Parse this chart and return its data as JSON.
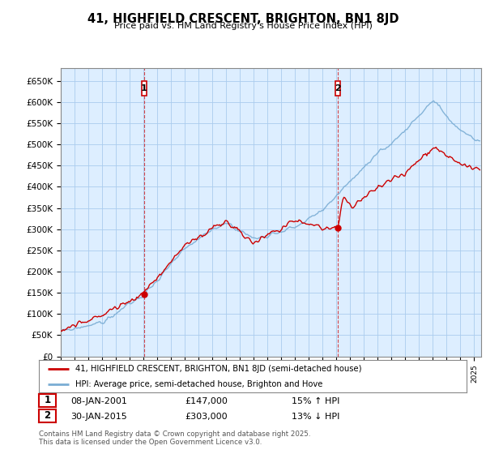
{
  "title": "41, HIGHFIELD CRESCENT, BRIGHTON, BN1 8JD",
  "subtitle": "Price paid vs. HM Land Registry's House Price Index (HPI)",
  "ylabel_ticks": [
    "£0",
    "£50K",
    "£100K",
    "£150K",
    "£200K",
    "£250K",
    "£300K",
    "£350K",
    "£400K",
    "£450K",
    "£500K",
    "£550K",
    "£600K",
    "£650K"
  ],
  "ytick_values": [
    0,
    50000,
    100000,
    150000,
    200000,
    250000,
    300000,
    350000,
    400000,
    450000,
    500000,
    550000,
    600000,
    650000
  ],
  "ylim": [
    0,
    680000
  ],
  "xlim_start": 1995.0,
  "xlim_end": 2025.5,
  "purchase1_x": 2001.03,
  "purchase1_y": 147000,
  "purchase1_label": "1",
  "purchase1_date": "08-JAN-2001",
  "purchase1_price": "£147,000",
  "purchase1_hpi": "15% ↑ HPI",
  "purchase2_x": 2015.08,
  "purchase2_y": 303000,
  "purchase2_label": "2",
  "purchase2_date": "30-JAN-2015",
  "purchase2_price": "£303,000",
  "purchase2_hpi": "13% ↓ HPI",
  "legend_label1": "41, HIGHFIELD CRESCENT, BRIGHTON, BN1 8JD (semi-detached house)",
  "legend_label2": "HPI: Average price, semi-detached house, Brighton and Hove",
  "footer": "Contains HM Land Registry data © Crown copyright and database right 2025.\nThis data is licensed under the Open Government Licence v3.0.",
  "line_color_red": "#cc0000",
  "line_color_blue": "#7aadd4",
  "bg_plot_color": "#ddeeff",
  "bg_color": "#ffffff",
  "grid_color": "#aaccee",
  "vline_color": "#cc0000"
}
